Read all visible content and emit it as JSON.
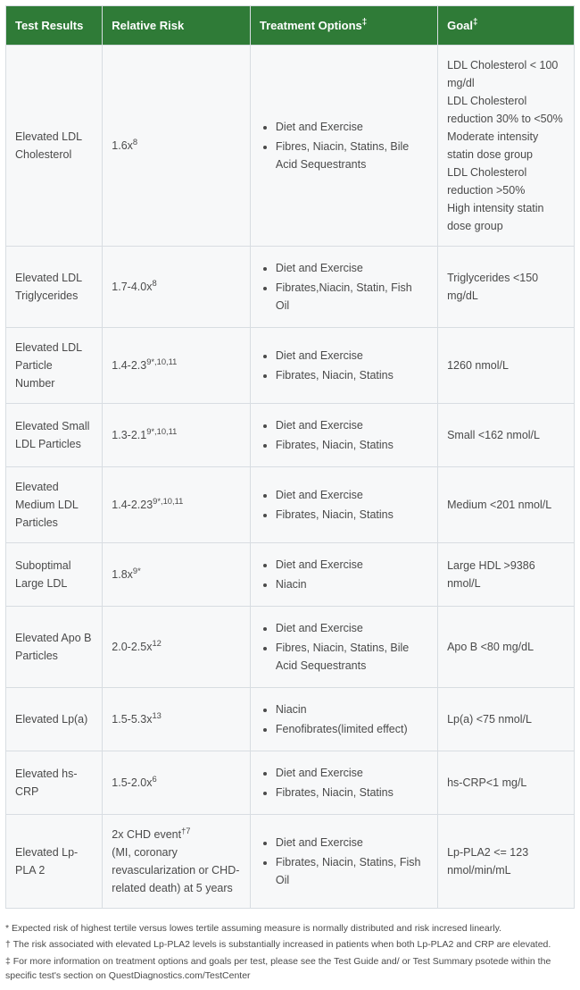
{
  "table": {
    "header_bg": "#2f7b37",
    "header_fg": "#ffffff",
    "row_bg": "#f7f8f9",
    "border_color": "#d8dde2",
    "columns": [
      {
        "label": "Test Results"
      },
      {
        "label": "Relative Risk"
      },
      {
        "label": "Treatment Options",
        "sup": "‡"
      },
      {
        "label": "Goal",
        "sup": "‡"
      }
    ],
    "rows": [
      {
        "test": "Elevated LDL Cholesterol",
        "risk": {
          "text": "1.6x",
          "sup": "8"
        },
        "treat": [
          "Diet and Exercise",
          "Fibres, Niacin, Statins, Bile Acid Sequestrants"
        ],
        "goal": "LDL Cholesterol < 100 mg/dl\nLDL Cholesterol reduction 30% to <50%\nModerate intensity statin dose group\nLDL Cholesterol reduction >50%\nHigh intensity statin dose group"
      },
      {
        "test": "Elevated LDL Triglycerides",
        "risk": {
          "text": "1.7-4.0x",
          "sup": "8"
        },
        "treat": [
          "Diet and Exercise",
          "Fibrates,Niacin, Statin, Fish Oil"
        ],
        "goal": "Triglycerides <150 mg/dL"
      },
      {
        "test": "Elevated LDL Particle Number",
        "risk": {
          "text": "1.4-2.3",
          "sup": "9*,10,11"
        },
        "treat": [
          "Diet and Exercise",
          "Fibrates, Niacin, Statins"
        ],
        "goal": "1260 nmol/L"
      },
      {
        "test": "Elevated Small LDL Particles",
        "risk": {
          "text": "1.3-2.1",
          "sup": "9*,10,11"
        },
        "treat": [
          "Diet and Exercise",
          "Fibrates, Niacin, Statins"
        ],
        "goal": "Small <162 nmol/L"
      },
      {
        "test": "Elevated Medium LDL Particles",
        "risk": {
          "text": "1.4-2.23",
          "sup": "9*,10,11"
        },
        "treat": [
          "Diet and Exercise",
          "Fibrates, Niacin, Statins"
        ],
        "goal": "Medium <201 nmol/L"
      },
      {
        "test": "Suboptimal Large LDL",
        "risk": {
          "text": "1.8x",
          "sup": "9*"
        },
        "treat": [
          "Diet and Exercise",
          "Niacin"
        ],
        "goal": "Large HDL >9386 nmol/L"
      },
      {
        "test": "Elevated Apo B Particles",
        "risk": {
          "text": "2.0-2.5x",
          "sup": "12"
        },
        "treat": [
          "Diet and Exercise",
          "Fibres, Niacin, Statins, Bile Acid Sequestrants"
        ],
        "goal": "Apo B <80 mg/dL"
      },
      {
        "test": "Elevated Lp(a)",
        "risk": {
          "text": "1.5-5.3x",
          "sup": "13"
        },
        "treat": [
          "Niacin",
          "Fenofibrates(limited effect)"
        ],
        "goal": "Lp(a) <75 nmol/L"
      },
      {
        "test": "Elevated hs-CRP",
        "risk": {
          "text": "1.5-2.0x",
          "sup": "6"
        },
        "treat": [
          "Diet and Exercise",
          "Fibrates, Niacin, Statins"
        ],
        "goal": "hs-CRP<1 mg/L"
      },
      {
        "test": "Elevated Lp-PLA 2",
        "risk": {
          "text": "2x CHD event",
          "sup": "†7",
          "tail": "\n(MI, coronary revascularization or CHD-related death) at 5 years"
        },
        "treat": [
          "Diet and Exercise",
          "Fibrates, Niacin, Statins, Fish Oil"
        ],
        "goal": "Lp-PLA2 <= 123 nmol/min/mL"
      }
    ]
  },
  "footnotes": [
    "* Expected risk of highest tertile versus lowes tertile assuming measure is normally distributed and risk incresed linearly.",
    "† The risk associated with elevated Lp-PLA2 levels is substantially increased in patients when both Lp-PLA2 and CRP are elevated.",
    "‡ For more information on treatment options and goals per test, please see the Test Guide and/ or Test Summary psotede within the specific test's section on QuestDiagnostics.com/TestCenter"
  ]
}
